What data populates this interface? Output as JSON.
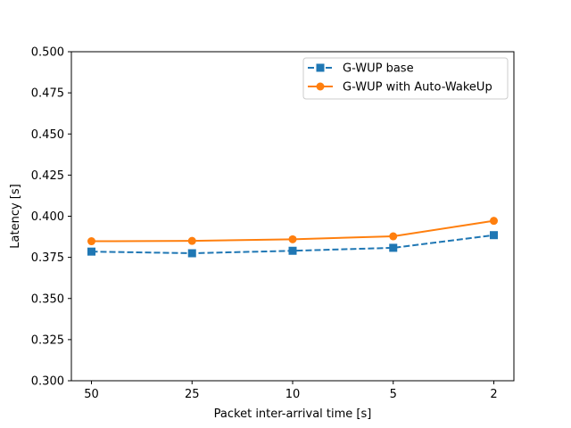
{
  "chart_data": {
    "type": "line",
    "title": "",
    "xlabel": "Packet inter-arrival time [s]",
    "ylabel": "Latency [s]",
    "categories": [
      "50",
      "25",
      "10",
      "5",
      "2"
    ],
    "ylim": [
      0.3,
      0.5
    ],
    "yticks": [
      "0.300",
      "0.325",
      "0.350",
      "0.375",
      "0.400",
      "0.425",
      "0.450",
      "0.475",
      "0.500"
    ],
    "grid": false,
    "legend_position": "top-right",
    "series": [
      {
        "name": "G-WUP base",
        "values": [
          0.3785,
          0.3775,
          0.379,
          0.3808,
          0.3885
        ],
        "color": "#1f77b4",
        "line_style": "dashed",
        "marker": "square"
      },
      {
        "name": "G-WUP with Auto-WakeUp",
        "values": [
          0.3848,
          0.385,
          0.386,
          0.3878,
          0.3972
        ],
        "color": "#ff7f0e",
        "line_style": "solid",
        "marker": "circle"
      }
    ]
  }
}
